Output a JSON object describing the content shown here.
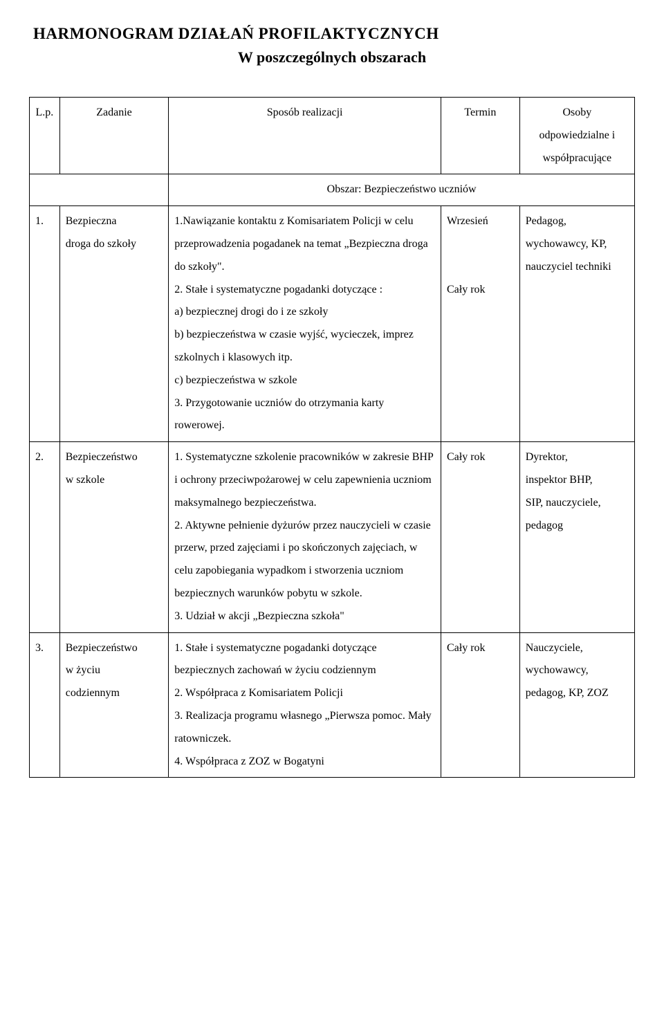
{
  "title1": "HARMONOGRAM  DZIAŁAŃ  PROFILAKTYCZNYCH",
  "title2": "W poszczególnych obszarach",
  "header": {
    "lp": "L.p.",
    "task": "Zadanie",
    "desc": "Sposób realizacji",
    "term": "Termin",
    "resp1": "Osoby",
    "resp2": "odpowiedzialne i",
    "resp3": "współpracujące",
    "section": "Obszar: Bezpieczeństwo uczniów"
  },
  "rows": [
    {
      "lp": "1.",
      "task1": "Bezpieczna",
      "task2": "droga do szkoły",
      "desc": "1.Nawiązanie kontaktu z Komisariatem Policji w celu przeprowadzenia pogadanek  na temat „Bezpieczna droga do szkoły\".\n2. Stałe i systematyczne pogadanki dotyczące :\na) bezpiecznej drogi do i ze szkoły\nb) bezpieczeństwa w czasie wyjść, wycieczek, imprez szkolnych i klasowych itp.\nc) bezpieczeństwa w szkole\n3. Przygotowanie uczniów do otrzymania karty rowerowej.",
      "term": "Wrzesień\n\n\nCały rok",
      "resp": "Pedagog,\nwychowawcy, KP,\nnauczyciel techniki"
    },
    {
      "lp": "2.",
      "task1": "Bezpieczeństwo",
      "task2": "w szkole",
      "desc": "1. Systematyczne szkolenie pracowników w zakresie BHP i ochrony przeciwpożarowej w celu zapewnienia uczniom maksymalnego bezpieczeństwa.\n2. Aktywne pełnienie dyżurów przez nauczycieli w czasie przerw, przed zajęciami i po skończonych zajęciach, w celu zapobiegania wypadkom i stworzenia uczniom bezpiecznych warunków pobytu w szkole.\n3. Udział w akcji „Bezpieczna szkoła\"",
      "term": "Cały rok",
      "resp": "Dyrektor,\ninspektor BHP,\nSIP, nauczyciele,\npedagog"
    },
    {
      "lp": "3.",
      "task1": "Bezpieczeństwo",
      "task2": "w życiu",
      "task3": "codziennym",
      "desc": "1. Stałe i systematyczne pogadanki dotyczące bezpiecznych zachowań w życiu codziennym\n2. Współpraca z Komisariatem Policji\n3. Realizacja programu własnego „Pierwsza pomoc. Mały ratowniczek.\n4. Współpraca z ZOZ w Bogatyni",
      "term": "Cały rok",
      "resp": "Nauczyciele,\nwychowawcy,\npedagog, KP, ZOZ"
    }
  ]
}
